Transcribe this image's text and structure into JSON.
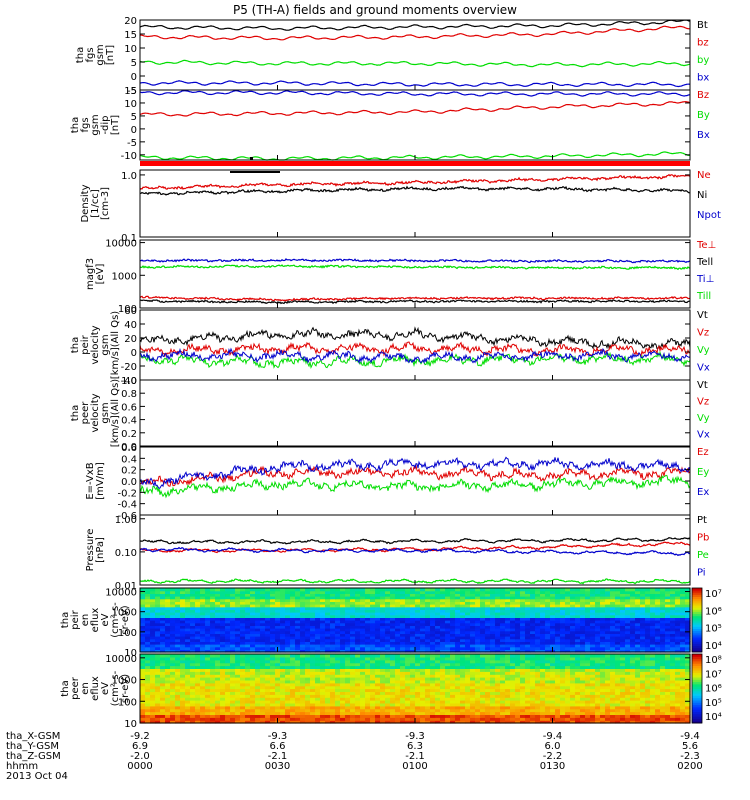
{
  "title": "P5 (TH-A) fields and ground moments overview",
  "colors": {
    "black": "#000000",
    "red": "#e00000",
    "green": "#00dd00",
    "blue": "#0000cc"
  },
  "chart_data": [
    {
      "type": "line",
      "panel": "fgs_gsm",
      "ylabel": [
        "tha",
        "fgs",
        "gsm",
        "[nT]"
      ],
      "ylim": [
        -5,
        20
      ],
      "ticks": [
        -5,
        0,
        5,
        10,
        15,
        20
      ],
      "series": [
        {
          "name": "Bt",
          "color": "black",
          "x": [
            0,
            30,
            60,
            90,
            120
          ],
          "y": [
            17.5,
            17,
            17.5,
            18,
            19.5
          ]
        },
        {
          "name": "bz",
          "color": "red",
          "x": [
            0,
            30,
            60,
            90,
            120
          ],
          "y": [
            14,
            13.5,
            14,
            15,
            17.5
          ]
        },
        {
          "name": "by",
          "color": "green",
          "x": [
            0,
            30,
            60,
            90,
            120
          ],
          "y": [
            5,
            4.5,
            4.5,
            4,
            4.5
          ]
        },
        {
          "name": "bx",
          "color": "blue",
          "x": [
            0,
            30,
            60,
            90,
            120
          ],
          "y": [
            -2.5,
            -2.5,
            -3,
            -3,
            -3
          ]
        }
      ]
    },
    {
      "type": "line",
      "panel": "fgs_gsm_dip",
      "ylabel": [
        "tha",
        "fgs",
        "gsm",
        "-dip",
        "[nT]"
      ],
      "ylim": [
        -12,
        15
      ],
      "ticks": [
        -10,
        -5,
        0,
        5,
        10,
        15
      ],
      "series": [
        {
          "name": "Bz",
          "color": "red",
          "x": [
            0,
            30,
            60,
            90,
            120
          ],
          "y": [
            5.5,
            6,
            6.5,
            8.5,
            10
          ]
        },
        {
          "name": "By",
          "color": "green",
          "x": [
            0,
            30,
            60,
            90,
            120
          ],
          "y": [
            -11,
            -11.5,
            -11,
            -10.5,
            -9.5
          ]
        },
        {
          "name": "Bx",
          "color": "blue",
          "x": [
            0,
            30,
            60,
            90,
            120
          ],
          "y": [
            14,
            14,
            13.5,
            13.5,
            13.5
          ]
        }
      ]
    },
    {
      "type": "line",
      "panel": "density",
      "ylabel": [
        "Density",
        "[1/cc]",
        "[cm-3]"
      ],
      "ylim": [
        0.1,
        1.2
      ],
      "scale": "log",
      "ticks": [
        0.1,
        1.0
      ],
      "series": [
        {
          "name": "Ne",
          "color": "red",
          "x": [
            0,
            30,
            60,
            90,
            120
          ],
          "y": [
            0.6,
            0.7,
            0.75,
            0.85,
            0.95
          ]
        },
        {
          "name": "Ni",
          "color": "black",
          "x": [
            0,
            30,
            60,
            90,
            120
          ],
          "y": [
            0.5,
            0.55,
            0.6,
            0.6,
            0.55
          ]
        },
        {
          "name": "Npot",
          "color": "blue",
          "x": [],
          "y": []
        }
      ]
    },
    {
      "type": "line",
      "panel": "temperature",
      "ylabel": [
        "magf3",
        "[eV]"
      ],
      "ylim": [
        100,
        12000
      ],
      "scale": "log",
      "ticks": [
        100,
        1000,
        10000
      ],
      "series": [
        {
          "name": "Te⊥",
          "color": "red",
          "x": [
            0,
            30,
            60,
            90,
            120
          ],
          "y": [
            210,
            180,
            200,
            200,
            200
          ]
        },
        {
          "name": "Tell",
          "color": "black",
          "x": [
            0,
            30,
            60,
            90,
            120
          ],
          "y": [
            165,
            150,
            160,
            160,
            160
          ]
        },
        {
          "name": "Ti⊥",
          "color": "blue",
          "x": [
            0,
            30,
            60,
            90,
            120
          ],
          "y": [
            2800,
            2900,
            2800,
            2700,
            2700
          ]
        },
        {
          "name": "Till",
          "color": "green",
          "x": [
            0,
            30,
            60,
            90,
            120
          ],
          "y": [
            1800,
            1900,
            1800,
            1700,
            1700
          ]
        }
      ]
    },
    {
      "type": "line",
      "panel": "peir_velocity",
      "ylabel": [
        "tha",
        "peir",
        "velocity",
        "gsm",
        "[km/s](All Qs)"
      ],
      "ylim": [
        -40,
        60
      ],
      "ticks": [
        -40,
        -20,
        0,
        20,
        40,
        60
      ],
      "series": [
        {
          "name": "Vt",
          "color": "black",
          "x": [
            0,
            30,
            60,
            90,
            120
          ],
          "y": [
            15,
            25,
            25,
            15,
            10
          ]
        },
        {
          "name": "Vz",
          "color": "red",
          "x": [
            0,
            30,
            60,
            90,
            120
          ],
          "y": [
            2,
            5,
            5,
            3,
            3
          ]
        },
        {
          "name": "Vy",
          "color": "green",
          "x": [
            0,
            30,
            60,
            90,
            120
          ],
          "y": [
            -10,
            -15,
            -12,
            -10,
            -10
          ]
        },
        {
          "name": "Vx",
          "color": "blue",
          "x": [
            0,
            30,
            60,
            90,
            120
          ],
          "y": [
            -5,
            -5,
            -8,
            -5,
            -5
          ]
        }
      ]
    },
    {
      "type": "line",
      "panel": "peer_velocity",
      "ylabel": [
        "tha",
        "peer",
        "velocity",
        "gsm",
        "[km/s](All Qs)"
      ],
      "ylim": [
        0,
        1
      ],
      "ticks": [
        0.0,
        0.2,
        0.4,
        0.6,
        0.8,
        1.0
      ],
      "series": [
        {
          "name": "Vt",
          "color": "black",
          "x": [],
          "y": []
        },
        {
          "name": "Vz",
          "color": "red",
          "x": [],
          "y": []
        },
        {
          "name": "Vy",
          "color": "green",
          "x": [],
          "y": []
        },
        {
          "name": "Vx",
          "color": "blue",
          "x": [],
          "y": []
        }
      ]
    },
    {
      "type": "line",
      "panel": "efield",
      "ylabel": [
        "E=-VxB",
        "[mV/m]"
      ],
      "ylim": [
        -0.6,
        0.6
      ],
      "ticks": [
        -0.6,
        -0.4,
        -0.2,
        0.0,
        0.2,
        0.4,
        0.6
      ],
      "series": [
        {
          "name": "Ez",
          "color": "red",
          "x": [
            0,
            30,
            60,
            90,
            120
          ],
          "y": [
            -0.05,
            0.15,
            0.15,
            0.1,
            0.15
          ]
        },
        {
          "name": "Ey",
          "color": "green",
          "x": [
            0,
            30,
            60,
            90,
            120
          ],
          "y": [
            -0.2,
            -0.05,
            -0.1,
            -0.05,
            0.0
          ]
        },
        {
          "name": "Ex",
          "color": "blue",
          "x": [
            0,
            30,
            60,
            90,
            120
          ],
          "y": [
            -0.05,
            0.25,
            0.3,
            0.3,
            0.25
          ]
        }
      ]
    },
    {
      "type": "line",
      "panel": "pressure",
      "ylabel": [
        "Pressure",
        "[nPa]"
      ],
      "ylim": [
        0.01,
        1.3
      ],
      "scale": "log",
      "ticks": [
        0.01,
        0.1,
        1.0
      ],
      "series": [
        {
          "name": "Pt",
          "color": "black",
          "x": [
            0,
            30,
            60,
            90,
            120
          ],
          "y": [
            0.2,
            0.2,
            0.21,
            0.22,
            0.24
          ]
        },
        {
          "name": "Pb",
          "color": "red",
          "x": [
            0,
            30,
            60,
            90,
            120
          ],
          "y": [
            0.11,
            0.11,
            0.12,
            0.14,
            0.18
          ]
        },
        {
          "name": "Pe",
          "color": "green",
          "x": [
            0,
            30,
            60,
            90,
            120
          ],
          "y": [
            0.013,
            0.013,
            0.013,
            0.013,
            0.013
          ]
        },
        {
          "name": "Pi",
          "color": "blue",
          "x": [
            0,
            30,
            60,
            90,
            120
          ],
          "y": [
            0.12,
            0.11,
            0.11,
            0.1,
            0.09
          ]
        }
      ]
    },
    {
      "type": "heatmap",
      "panel": "peir_spectrogram",
      "ylabel": [
        "tha",
        "peir",
        "en",
        "eflux",
        "eV",
        "(cm²-s-",
        "sr-eV)"
      ],
      "ylim": [
        10,
        15000
      ],
      "scale": "log",
      "ticks": [
        10,
        100,
        1000,
        10000
      ],
      "colorbar": {
        "ticks": [
          "10⁴",
          "10⁵",
          "10⁶",
          "10⁷"
        ]
      }
    },
    {
      "type": "heatmap",
      "panel": "peer_spectrogram",
      "ylabel": [
        "tha",
        "peer",
        "en",
        "eflux",
        "eV",
        "(cm²-s-",
        "sr-eV)"
      ],
      "ylim": [
        10,
        15000
      ],
      "scale": "log",
      "ticks": [
        10,
        100,
        1000,
        10000
      ],
      "colorbar": {
        "ticks": [
          "10⁴",
          "10⁵",
          "10⁶",
          "10⁷",
          "10⁸"
        ]
      }
    }
  ],
  "footer": {
    "rows": [
      {
        "label": "tha_X-GSM",
        "values": [
          "-9.2",
          "-9.3",
          "-9.3",
          "-9.4",
          "-9.4"
        ]
      },
      {
        "label": "tha_Y-GSM",
        "values": [
          "6.9",
          "6.6",
          "6.3",
          "6.0",
          "5.6"
        ]
      },
      {
        "label": "tha_Z-GSM",
        "values": [
          "-2.0",
          "-2.1",
          "-2.1",
          "-2.2",
          "-2.3"
        ]
      },
      {
        "label": "hhmm",
        "values": [
          "0000",
          "0030",
          "0100",
          "0130",
          "0200"
        ]
      }
    ],
    "date": "2013 Oct 04"
  }
}
